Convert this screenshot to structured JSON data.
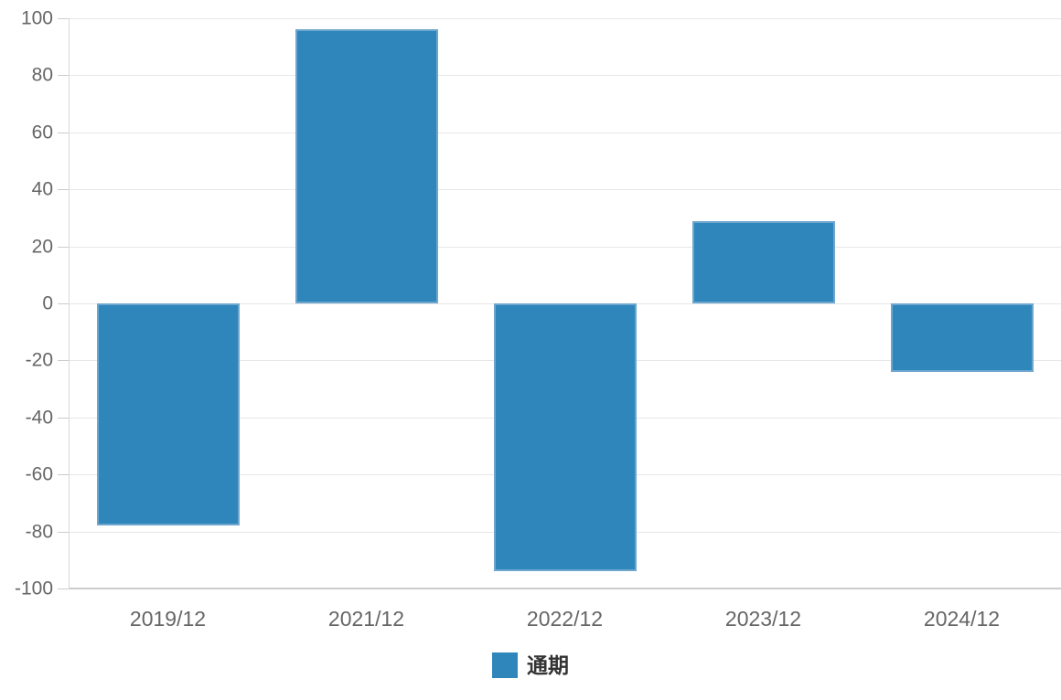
{
  "chart_data": {
    "type": "bar",
    "title": "",
    "xlabel": "",
    "ylabel": "",
    "categories": [
      "2019/12",
      "2021/12",
      "2022/12",
      "2023/12",
      "2024/12"
    ],
    "series": [
      {
        "name": "通期",
        "values": [
          -78,
          96,
          -94,
          29,
          -24
        ],
        "color": "#2e86ba",
        "border_color": "#6da7cf"
      }
    ],
    "ylim": [
      -100,
      100
    ],
    "yticks": [
      100,
      80,
      60,
      40,
      20,
      0,
      -20,
      -40,
      -60,
      -80,
      -100
    ],
    "grid": true,
    "legend_position": "bottom-center",
    "colors": {
      "grid_line": "#e7e7e7",
      "bottom_line": "#cccccc",
      "axis_line": "#d9d9d9",
      "tick_mark": "#cccccc",
      "axis_label": "#666666",
      "legend_text": "#333333",
      "background": "#ffffff"
    }
  }
}
